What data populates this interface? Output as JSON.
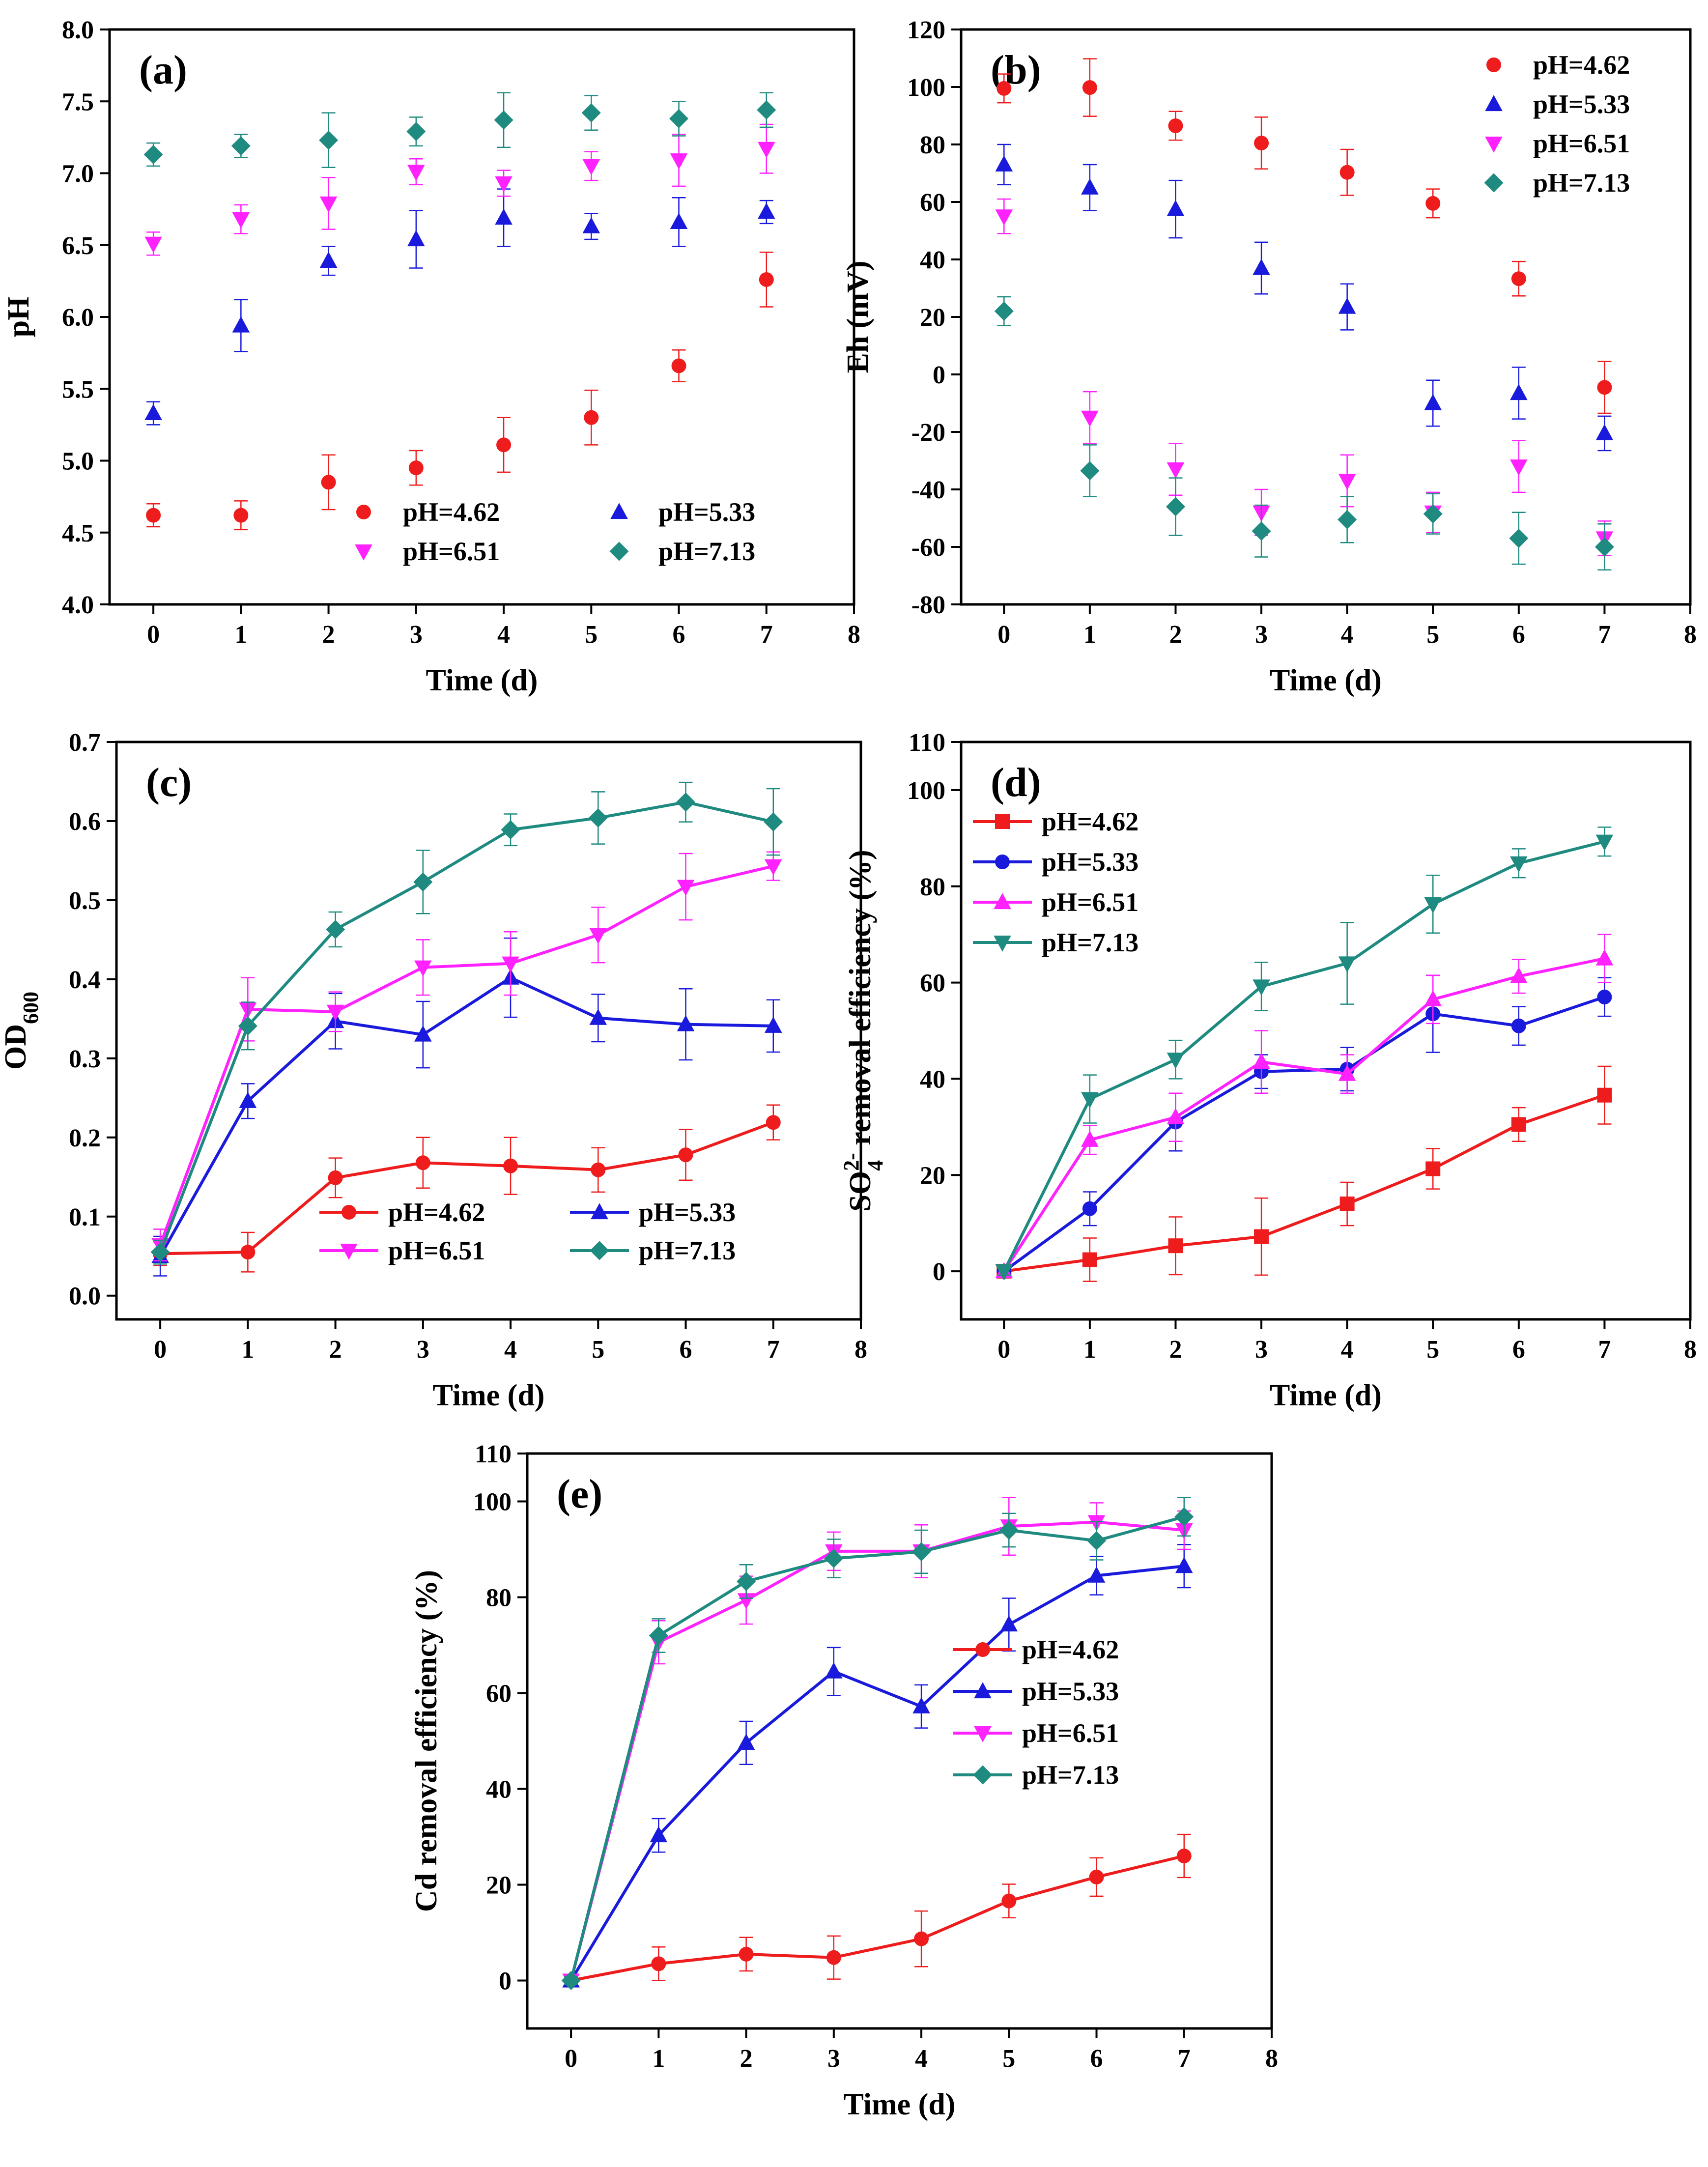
{
  "colors": {
    "pH_4_62": "#ee1c1c",
    "pH_5_33": "#1a1adc",
    "pH_6_51": "#ff22ff",
    "pH_7_13": "#1e8a80"
  },
  "chart_data": [
    {
      "id": "a",
      "type": "scatter",
      "panel_label": "(a)",
      "xlabel": "Time (d)",
      "ylabel": "pH",
      "xlim": [
        -0.5,
        8
      ],
      "ylim": [
        4.0,
        8.0
      ],
      "xticks": [
        0,
        1,
        2,
        3,
        4,
        5,
        6,
        7,
        8
      ],
      "xtick_labels": [
        "0",
        "1",
        "2",
        "3",
        "4",
        "5",
        "6",
        "7",
        "8"
      ],
      "yticks": [
        4.0,
        4.5,
        5.0,
        5.5,
        6.0,
        6.5,
        7.0,
        7.5,
        8.0
      ],
      "ytick_labels": [
        "4.0",
        "4.5",
        "5.0",
        "5.5",
        "6.0",
        "6.5",
        "7.0",
        "7.5",
        "8.0"
      ],
      "connect": false,
      "legend_placement": "bottom-right-2col",
      "x": [
        0,
        1,
        2,
        3,
        4,
        5,
        6,
        7
      ],
      "series": [
        {
          "name": "pH=4.62",
          "marker": "circle",
          "color_key": "pH_4_62",
          "values": [
            4.62,
            4.62,
            4.85,
            4.95,
            5.11,
            5.3,
            5.66,
            6.26
          ],
          "errors": [
            0.08,
            0.1,
            0.19,
            0.12,
            0.19,
            0.19,
            0.11,
            0.19
          ]
        },
        {
          "name": "pH=5.33",
          "marker": "triangle-up",
          "color_key": "pH_5_33",
          "values": [
            5.33,
            5.94,
            6.39,
            6.54,
            6.69,
            6.63,
            6.66,
            6.73
          ],
          "errors": [
            0.08,
            0.18,
            0.1,
            0.2,
            0.2,
            0.09,
            0.17,
            0.08
          ]
        },
        {
          "name": "pH=6.51",
          "marker": "triangle-down",
          "color_key": "pH_6_51",
          "values": [
            6.51,
            6.68,
            6.79,
            7.01,
            6.93,
            7.05,
            7.09,
            7.17
          ],
          "errors": [
            0.08,
            0.1,
            0.18,
            0.09,
            0.09,
            0.1,
            0.18,
            0.17
          ]
        },
        {
          "name": "pH=7.13",
          "marker": "diamond",
          "color_key": "pH_7_13",
          "values": [
            7.13,
            7.19,
            7.23,
            7.29,
            7.37,
            7.42,
            7.38,
            7.44
          ],
          "errors": [
            0.08,
            0.08,
            0.19,
            0.1,
            0.19,
            0.12,
            0.12,
            0.12
          ]
        }
      ]
    },
    {
      "id": "b",
      "type": "scatter",
      "panel_label": "(b)",
      "xlabel": "Time (d)",
      "ylabel": "Eh (mV)",
      "xlim": [
        -0.5,
        8
      ],
      "ylim": [
        -80,
        120
      ],
      "xticks": [
        0,
        1,
        2,
        3,
        4,
        5,
        6,
        7,
        8
      ],
      "xtick_labels": [
        "0",
        "1",
        "2",
        "3",
        "4",
        "5",
        "6",
        "7",
        "8"
      ],
      "yticks": [
        -80,
        -60,
        -40,
        -20,
        0,
        20,
        40,
        60,
        80,
        100,
        120
      ],
      "ytick_labels": [
        "-80",
        "-60",
        "-40",
        "-20",
        "0",
        "20",
        "40",
        "60",
        "80",
        "100",
        "120"
      ],
      "connect": false,
      "legend_placement": "top-right",
      "x": [
        0,
        1,
        2,
        3,
        4,
        5,
        6,
        7
      ],
      "series": [
        {
          "name": "pH=4.62",
          "marker": "circle",
          "color_key": "pH_4_62",
          "values": [
            99.5,
            99.8,
            86.5,
            80.5,
            70.3,
            59.5,
            33.3,
            -4.5
          ],
          "errors": [
            5,
            10,
            5,
            9,
            8,
            5,
            6,
            9
          ]
        },
        {
          "name": "pH=5.33",
          "marker": "triangle-up",
          "color_key": "pH_5_33",
          "values": [
            73.0,
            65.0,
            57.5,
            37.0,
            23.5,
            -10.0,
            -6.5,
            -20.5
          ],
          "errors": [
            7,
            8,
            10,
            9,
            8,
            8,
            9,
            6
          ]
        },
        {
          "name": "pH=6.51",
          "marker": "triangle-down",
          "color_key": "pH_6_51",
          "values": [
            55.0,
            -15.0,
            -33.0,
            -48.0,
            -37.0,
            -48.0,
            -32.0,
            -57.0
          ],
          "errors": [
            6,
            9,
            9,
            8,
            9,
            7,
            9,
            6
          ]
        },
        {
          "name": "pH=7.13",
          "marker": "diamond",
          "color_key": "pH_7_13",
          "values": [
            22.0,
            -33.5,
            -46.0,
            -54.5,
            -50.5,
            -48.5,
            -57.0,
            -60.0
          ],
          "errors": [
            5,
            9,
            10,
            9,
            8,
            7,
            9,
            8
          ]
        }
      ]
    },
    {
      "id": "c",
      "type": "line",
      "panel_label": "(c)",
      "xlabel": "Time (d)",
      "ylabel": "OD",
      "ylabel_subscript": "600",
      "xlim": [
        -0.5,
        8
      ],
      "ylim": [
        -0.03,
        0.7
      ],
      "xticks": [
        0,
        1,
        2,
        3,
        4,
        5,
        6,
        7,
        8
      ],
      "xtick_labels": [
        "0",
        "1",
        "2",
        "3",
        "4",
        "5",
        "6",
        "7",
        "8"
      ],
      "yticks": [
        0.0,
        0.1,
        0.2,
        0.3,
        0.4,
        0.5,
        0.6,
        0.7
      ],
      "ytick_labels": [
        "0.0",
        "0.1",
        "0.2",
        "0.3",
        "0.4",
        "0.5",
        "0.6",
        "0.7"
      ],
      "connect": true,
      "legend_placement": "bottom-right-2col",
      "x": [
        0,
        1,
        2,
        3,
        4,
        5,
        6,
        7
      ],
      "series": [
        {
          "name": "pH=4.62",
          "marker": "circle",
          "color_key": "pH_4_62",
          "values": [
            0.053,
            0.055,
            0.149,
            0.168,
            0.164,
            0.159,
            0.178,
            0.219
          ],
          "errors": [
            0.015,
            0.025,
            0.025,
            0.032,
            0.036,
            0.028,
            0.032,
            0.022
          ]
        },
        {
          "name": "pH=5.33",
          "marker": "triangle-up",
          "color_key": "pH_5_33",
          "values": [
            0.05,
            0.246,
            0.347,
            0.33,
            0.402,
            0.351,
            0.343,
            0.341
          ],
          "errors": [
            0.025,
            0.022,
            0.035,
            0.042,
            0.05,
            0.03,
            0.045,
            0.033
          ]
        },
        {
          "name": "pH=6.51",
          "marker": "triangle-down",
          "color_key": "pH_6_51",
          "values": [
            0.064,
            0.362,
            0.359,
            0.415,
            0.42,
            0.456,
            0.517,
            0.543
          ],
          "errors": [
            0.02,
            0.04,
            0.025,
            0.035,
            0.04,
            0.035,
            0.042,
            0.018
          ]
        },
        {
          "name": "pH=7.13",
          "marker": "diamond",
          "color_key": "pH_7_13",
          "values": [
            0.055,
            0.341,
            0.463,
            0.523,
            0.589,
            0.604,
            0.624,
            0.599
          ],
          "errors": [
            0.015,
            0.03,
            0.022,
            0.04,
            0.02,
            0.033,
            0.025,
            0.042
          ]
        }
      ]
    },
    {
      "id": "d",
      "type": "line",
      "panel_label": "(d)",
      "xlabel": "Time (d)",
      "ylabel_parts": [
        "SO",
        "4",
        "2-",
        " removal efficiency (%)"
      ],
      "xlim": [
        -0.5,
        8
      ],
      "ylim": [
        -10,
        110
      ],
      "xticks": [
        0,
        1,
        2,
        3,
        4,
        5,
        6,
        7,
        8
      ],
      "xtick_labels": [
        "0",
        "1",
        "2",
        "3",
        "4",
        "5",
        "6",
        "7",
        "8"
      ],
      "yticks": [
        0,
        20,
        40,
        60,
        80,
        100,
        110
      ],
      "ytick_labels": [
        "0",
        "20",
        "40",
        "60",
        "80",
        "100",
        "110"
      ],
      "connect": true,
      "legend_placement": "top-left",
      "x": [
        0,
        1,
        2,
        3,
        4,
        5,
        6,
        7
      ],
      "series": [
        {
          "name": "pH=4.62",
          "marker": "square",
          "color_key": "pH_4_62",
          "values": [
            0.0,
            2.4,
            5.3,
            7.2,
            14.0,
            21.3,
            30.5,
            36.6
          ],
          "errors": [
            0.8,
            4.5,
            6.0,
            8.0,
            4.5,
            4.2,
            3.5,
            6.0
          ]
        },
        {
          "name": "pH=5.33",
          "marker": "circle",
          "color_key": "pH_5_33",
          "values": [
            0.0,
            13.0,
            31.0,
            41.5,
            42.0,
            53.5,
            51.0,
            57.0
          ],
          "errors": [
            0.8,
            3.5,
            6.0,
            3.5,
            4.5,
            8.0,
            4.0,
            4.0
          ]
        },
        {
          "name": "pH=6.51",
          "marker": "triangle-up",
          "color_key": "pH_6_51",
          "values": [
            0.0,
            27.3,
            32.0,
            43.5,
            41.0,
            56.5,
            61.3,
            65.0
          ],
          "errors": [
            0.8,
            3.0,
            5.0,
            6.5,
            4.0,
            5.0,
            3.5,
            5.0
          ]
        },
        {
          "name": "pH=7.13",
          "marker": "triangle-down",
          "color_key": "pH_7_13",
          "values": [
            0.0,
            35.8,
            44.0,
            59.2,
            64.0,
            76.3,
            84.8,
            89.3
          ],
          "errors": [
            0.8,
            5.0,
            4.0,
            5.0,
            8.5,
            6.0,
            3.0,
            3.0
          ]
        }
      ]
    },
    {
      "id": "e",
      "type": "line",
      "panel_label": "(e)",
      "xlabel": "Time (d)",
      "ylabel": "Cd removal efficiency (%)",
      "xlim": [
        -0.5,
        8
      ],
      "ylim": [
        -10,
        110
      ],
      "xticks": [
        0,
        1,
        2,
        3,
        4,
        5,
        6,
        7,
        8
      ],
      "xtick_labels": [
        "0",
        "1",
        "2",
        "3",
        "4",
        "5",
        "6",
        "7",
        "8"
      ],
      "yticks": [
        0,
        20,
        40,
        60,
        80,
        100,
        110
      ],
      "ytick_labels": [
        "0",
        "20",
        "40",
        "60",
        "80",
        "100",
        "110"
      ],
      "connect": true,
      "legend_placement": "middle-right",
      "x": [
        0,
        1,
        2,
        3,
        4,
        5,
        6,
        7
      ],
      "series": [
        {
          "name": "pH=4.62",
          "marker": "circle",
          "color_key": "pH_4_62",
          "values": [
            0.0,
            3.5,
            5.5,
            4.8,
            8.7,
            16.6,
            21.6,
            26.0
          ],
          "errors": [
            0.8,
            3.5,
            3.5,
            4.5,
            5.8,
            3.5,
            4.0,
            4.5
          ]
        },
        {
          "name": "pH=5.33",
          "marker": "triangle-up",
          "color_key": "pH_5_33",
          "values": [
            0.0,
            30.3,
            49.6,
            64.5,
            57.2,
            74.3,
            84.5,
            86.5
          ],
          "errors": [
            0.8,
            3.5,
            4.5,
            5.0,
            4.5,
            5.5,
            4.0,
            4.5
          ]
        },
        {
          "name": "pH=6.51",
          "marker": "triangle-down",
          "color_key": "pH_6_51",
          "values": [
            0.0,
            70.6,
            79.4,
            89.6,
            89.6,
            94.8,
            95.7,
            94.0
          ],
          "errors": [
            0.8,
            4.5,
            5.0,
            4.0,
            5.5,
            6.0,
            4.0,
            4.0
          ]
        },
        {
          "name": "pH=7.13",
          "marker": "diamond",
          "color_key": "pH_7_13",
          "values": [
            0.0,
            72.0,
            83.3,
            88.1,
            89.5,
            94.0,
            91.8,
            96.8
          ],
          "errors": [
            0.8,
            3.5,
            3.5,
            4.0,
            4.5,
            3.5,
            4.0,
            4.0
          ]
        }
      ]
    }
  ]
}
